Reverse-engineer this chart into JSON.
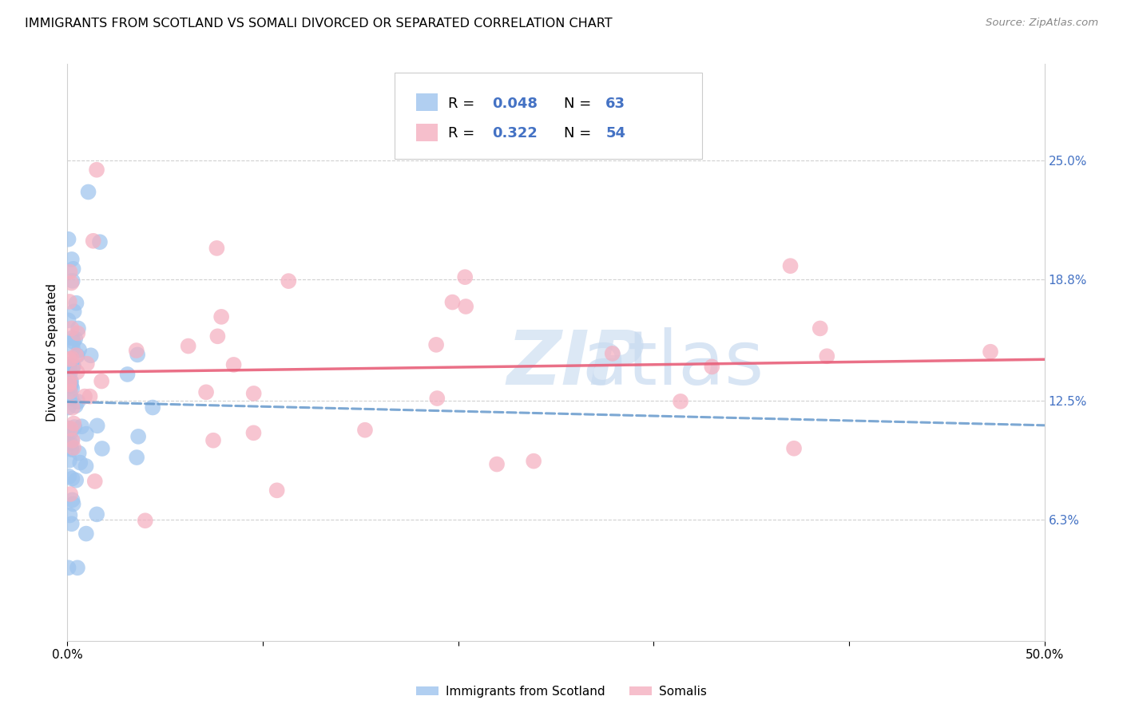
{
  "title": "IMMIGRANTS FROM SCOTLAND VS SOMALI DIVORCED OR SEPARATED CORRELATION CHART",
  "source": "Source: ZipAtlas.com",
  "ylabel": "Divorced or Separated",
  "x_min": 0.0,
  "x_max": 0.5,
  "y_min": 0.0,
  "y_max": 0.3,
  "y_ticks_right": [
    0.063,
    0.125,
    0.188,
    0.25
  ],
  "y_tick_labels_right": [
    "6.3%",
    "12.5%",
    "18.8%",
    "25.0%"
  ],
  "legend_r1": "0.048",
  "legend_n1": "63",
  "legend_r2": "0.322",
  "legend_n2": "54",
  "legend_label1": "Immigrants from Scotland",
  "legend_label2": "Somalis",
  "scotland_color": "#9ec4ee",
  "somali_color": "#f4afc0",
  "trendline1_color": "#6699cc",
  "trendline2_color": "#e8607a",
  "watermark_zip": "ZIP",
  "watermark_atlas": "atlas",
  "watermark_color": "#dce8f5",
  "background_color": "#ffffff",
  "title_fontsize": 11.5,
  "label_color_blue": "#4472c4",
  "grid_color": "#d0d0d0"
}
